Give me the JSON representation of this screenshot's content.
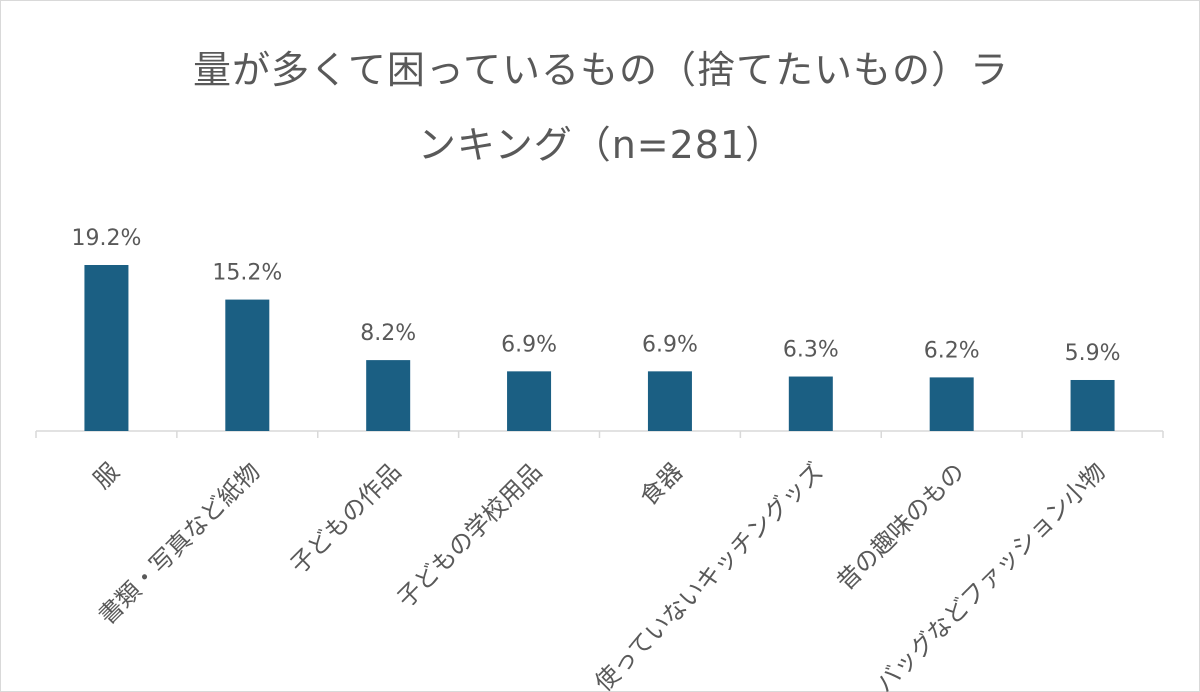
{
  "chart_data": {
    "type": "bar",
    "title_lines": [
      "量が多くて困っているもの（捨てたいもの）ラ",
      "ンキング（n=281）"
    ],
    "categories": [
      "服",
      "書類・写真など紙物",
      "子どもの作品",
      "子どもの学校用品",
      "食器",
      "使っていないキッチングッズ",
      "昔の趣味のもの",
      "バッグなどファッション小物"
    ],
    "values": [
      19.2,
      15.2,
      8.2,
      6.9,
      6.9,
      6.3,
      6.2,
      5.9
    ],
    "data_labels": [
      "19.2%",
      "15.2%",
      "8.2%",
      "6.9%",
      "6.9%",
      "6.3%",
      "6.2%",
      "5.9%"
    ],
    "value_unit": "%",
    "bar_color": "#1b5f83",
    "text_color": "#595959",
    "axis_color": "#d9d9d9",
    "ylim": [
      0,
      19.2
    ],
    "grid": false,
    "legend": false
  }
}
